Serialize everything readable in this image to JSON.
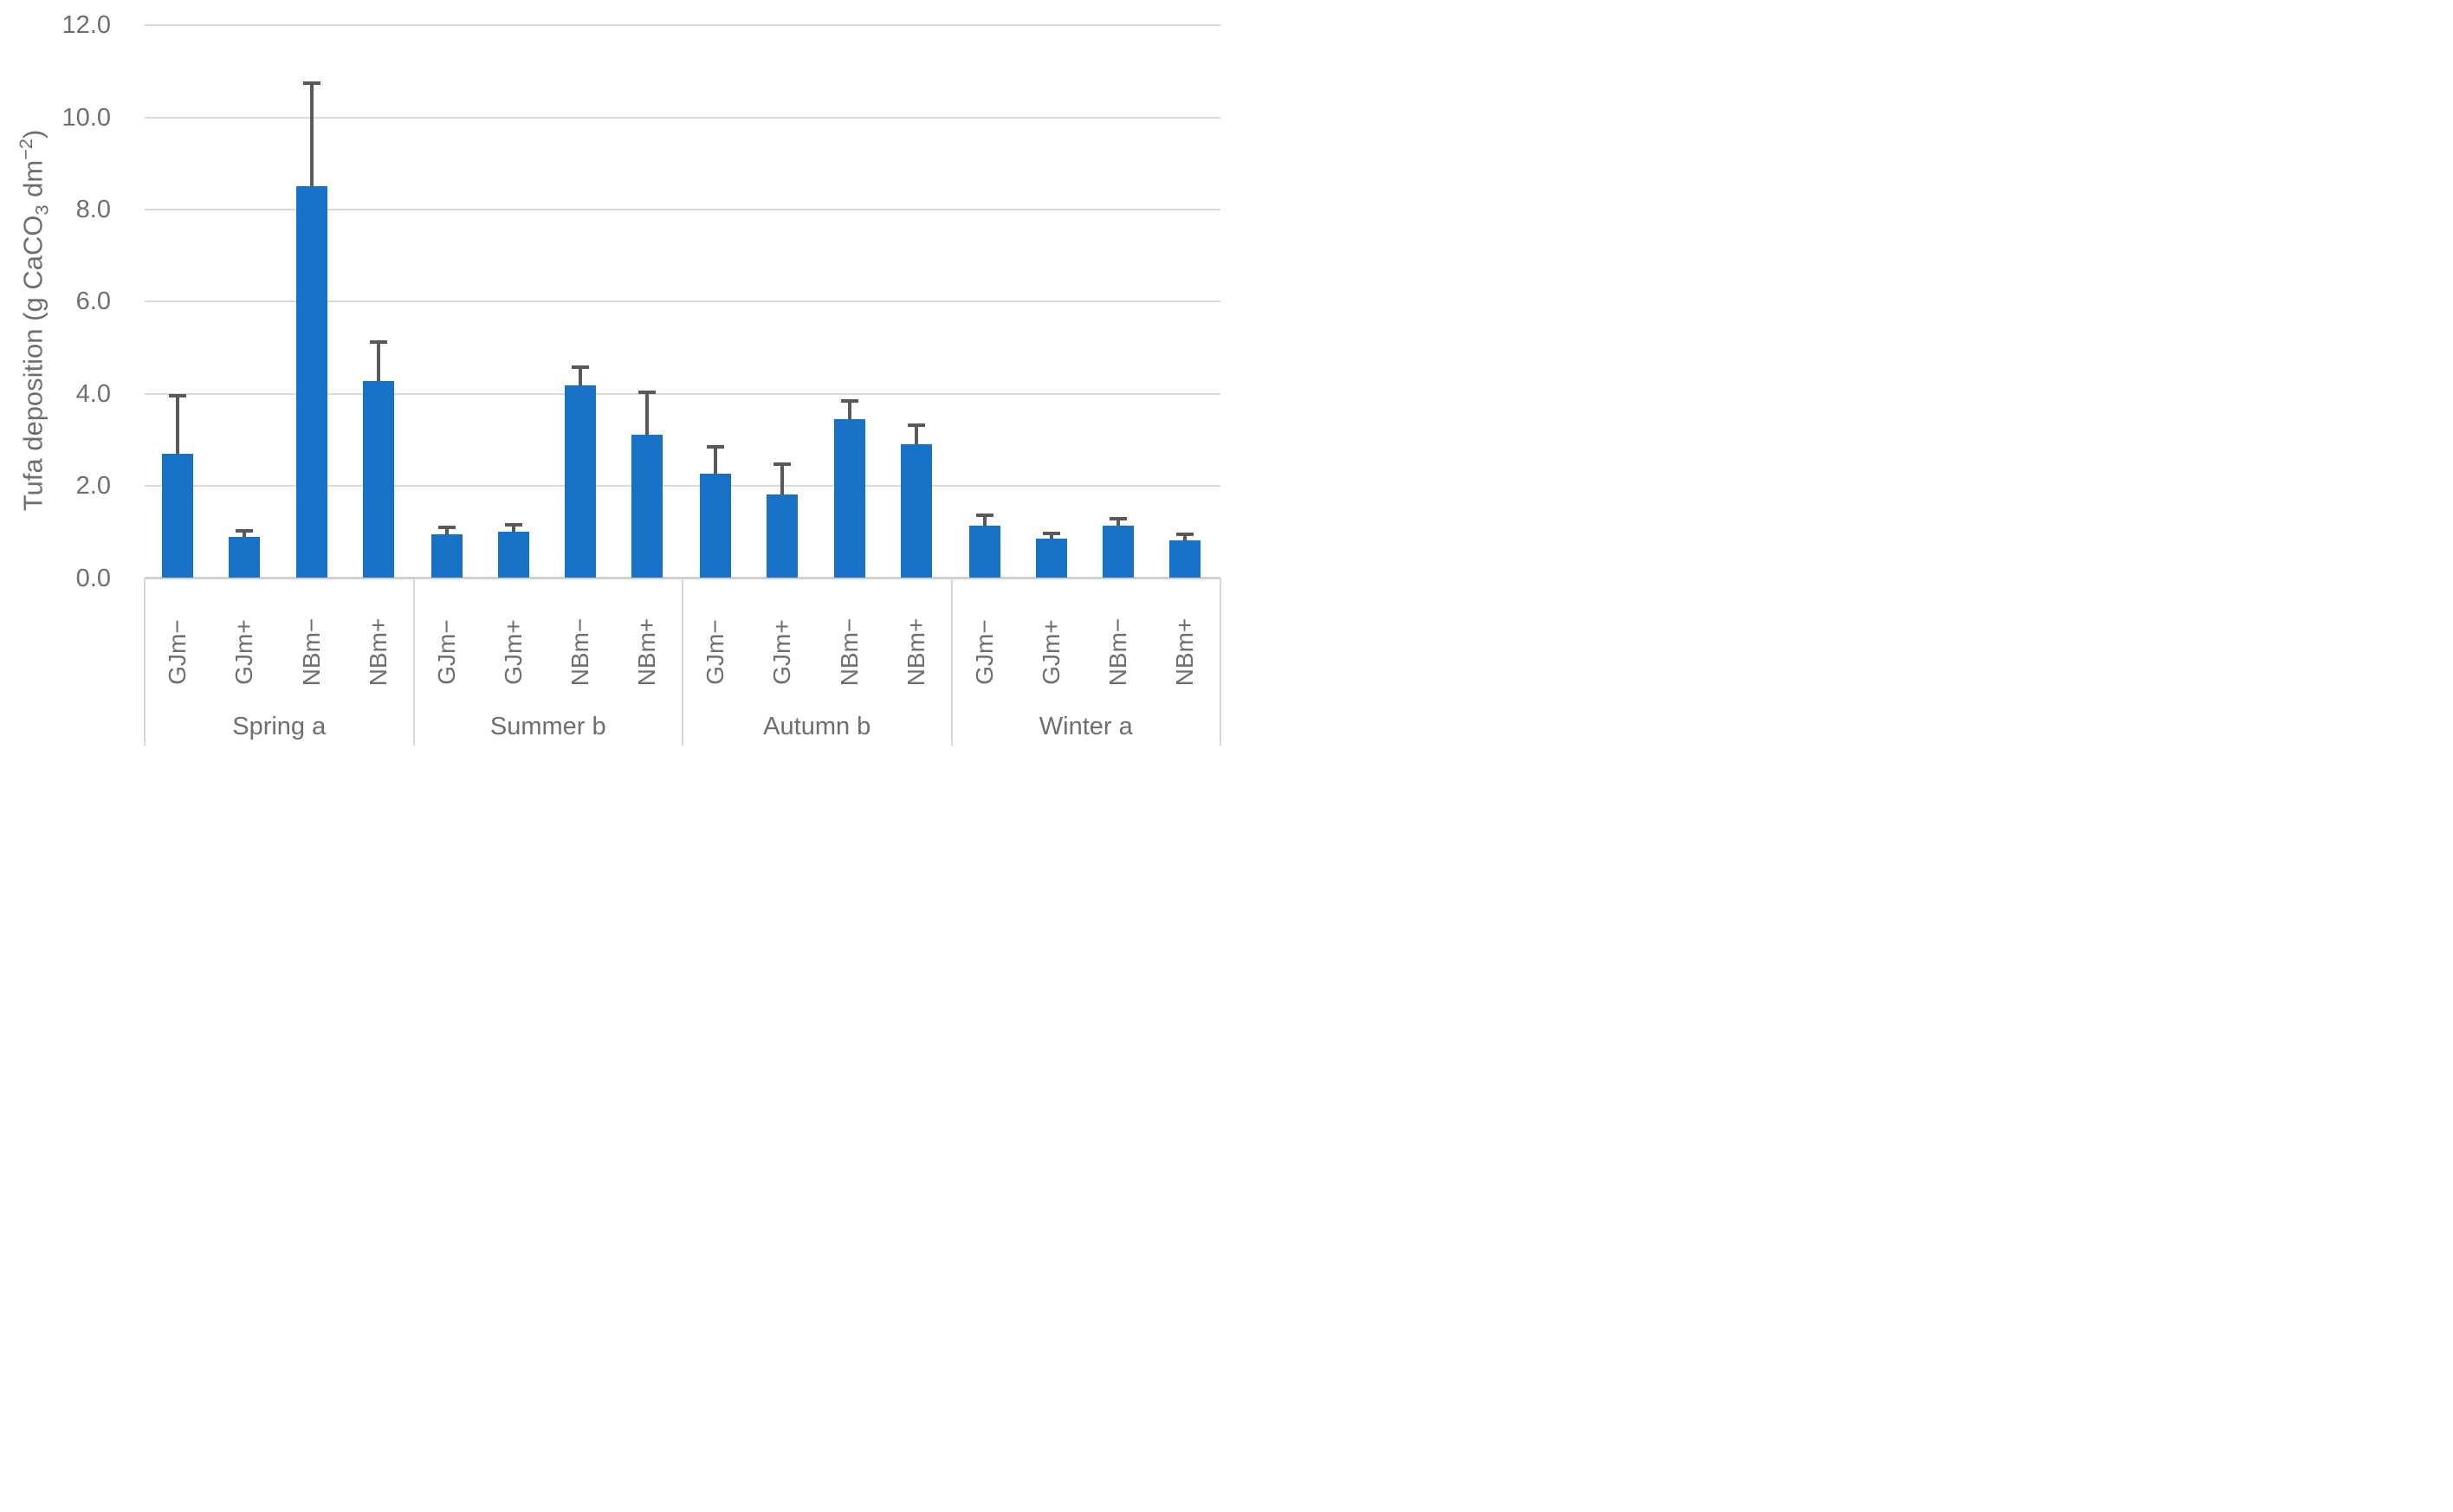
{
  "chart_data": {
    "type": "bar",
    "title": "",
    "xlabel": "",
    "ylabel": "Tufa deposition (g CaCO3 dm-2)",
    "ylabel_parts": {
      "prefix": "Tufa deposition (g CaCO",
      "sub": "3",
      "mid": " dm",
      "sup": "−2",
      "suffix": ")"
    },
    "ylim": [
      0.0,
      12.0
    ],
    "grid": true,
    "legend": null,
    "bar_color": "#1771C6",
    "error_bar_color": "#595959",
    "gridline_color": "#DADADA",
    "text_color": "#6E6E6E",
    "yticks": [
      {
        "label": "0.0",
        "value": 0
      },
      {
        "label": "2.0",
        "value": 2
      },
      {
        "label": "4.0",
        "value": 4
      },
      {
        "label": "6.0",
        "value": 6
      },
      {
        "label": "8.0",
        "value": 8
      },
      {
        "label": "10.0",
        "value": 10
      },
      {
        "label": "12.0",
        "value": 12
      }
    ],
    "categories_per_group": [
      "GJm−",
      "GJm+",
      "NBm−",
      "NBm+"
    ],
    "groups": [
      {
        "label": "Spring a",
        "values": [
          2.7,
          0.9,
          8.5,
          4.28
        ],
        "errors_plus": [
          1.25,
          0.13,
          2.25,
          0.85
        ]
      },
      {
        "label": "Summer b",
        "values": [
          0.94,
          1.01,
          4.19,
          3.12
        ],
        "errors_plus": [
          0.16,
          0.14,
          0.39,
          0.91
        ]
      },
      {
        "label": "Autumn b",
        "values": [
          2.26,
          1.81,
          3.44,
          2.91
        ],
        "errors_plus": [
          0.59,
          0.66,
          0.4,
          0.4
        ]
      },
      {
        "label": "Winter a",
        "values": [
          1.14,
          0.86,
          1.14,
          0.82
        ],
        "errors_plus": [
          0.22,
          0.11,
          0.15,
          0.12
        ]
      }
    ]
  }
}
